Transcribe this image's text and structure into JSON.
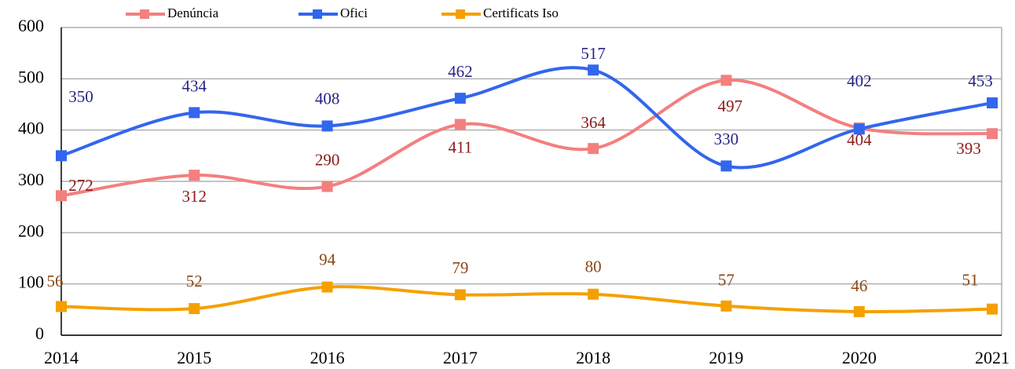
{
  "chart_data": {
    "type": "line",
    "categories": [
      "2014",
      "2015",
      "2016",
      "2017",
      "2018",
      "2019",
      "2020",
      "2021"
    ],
    "series": [
      {
        "name": "Denúncia",
        "color": "#f47f7f",
        "label_color": "#8b1a1a",
        "values": [
          272,
          312,
          290,
          411,
          364,
          497,
          404,
          393
        ]
      },
      {
        "name": "Ofici",
        "color": "#3366ee",
        "label_color": "#25258a",
        "values": [
          350,
          434,
          408,
          462,
          517,
          330,
          402,
          453
        ]
      },
      {
        "name": "Certificats Iso",
        "color": "#f5a000",
        "label_color": "#8b4513",
        "values": [
          56,
          52,
          94,
          79,
          80,
          57,
          46,
          51
        ]
      }
    ],
    "ylim": [
      0,
      600
    ],
    "yticks": [
      0,
      100,
      200,
      300,
      400,
      500,
      600
    ],
    "grid": true,
    "smooth": true,
    "legend": "top"
  }
}
